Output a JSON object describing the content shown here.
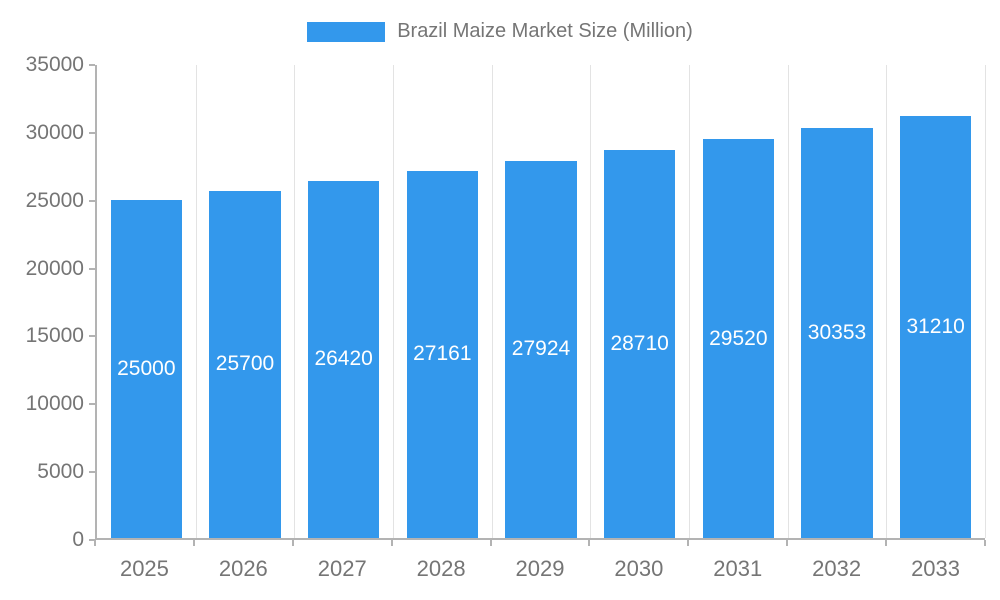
{
  "legend": {
    "label": "Brazil Maize Market Size (Million)",
    "color": "#3398EC"
  },
  "chart_data": {
    "type": "bar",
    "title": "Brazil Maize Market Size (Million)",
    "categories": [
      "2025",
      "2026",
      "2027",
      "2028",
      "2029",
      "2030",
      "2031",
      "2032",
      "2033"
    ],
    "values": [
      25000,
      25700,
      26420,
      27161,
      27924,
      28710,
      29520,
      30353,
      31210
    ],
    "series": [
      {
        "name": "Brazil Maize Market Size (Million)",
        "values": [
          25000,
          25700,
          26420,
          27161,
          27924,
          28710,
          29520,
          30353,
          31210
        ]
      }
    ],
    "xlabel": "",
    "ylabel": "",
    "ylim": [
      0,
      35000
    ],
    "yticks": [
      0,
      5000,
      10000,
      15000,
      20000,
      25000,
      30000,
      35000
    ],
    "bar_color": "#3398EC",
    "value_label_color": "#FFFFFF",
    "axis_text_color": "#757575",
    "grid": "vertical-only",
    "legend_position": "top-center"
  }
}
